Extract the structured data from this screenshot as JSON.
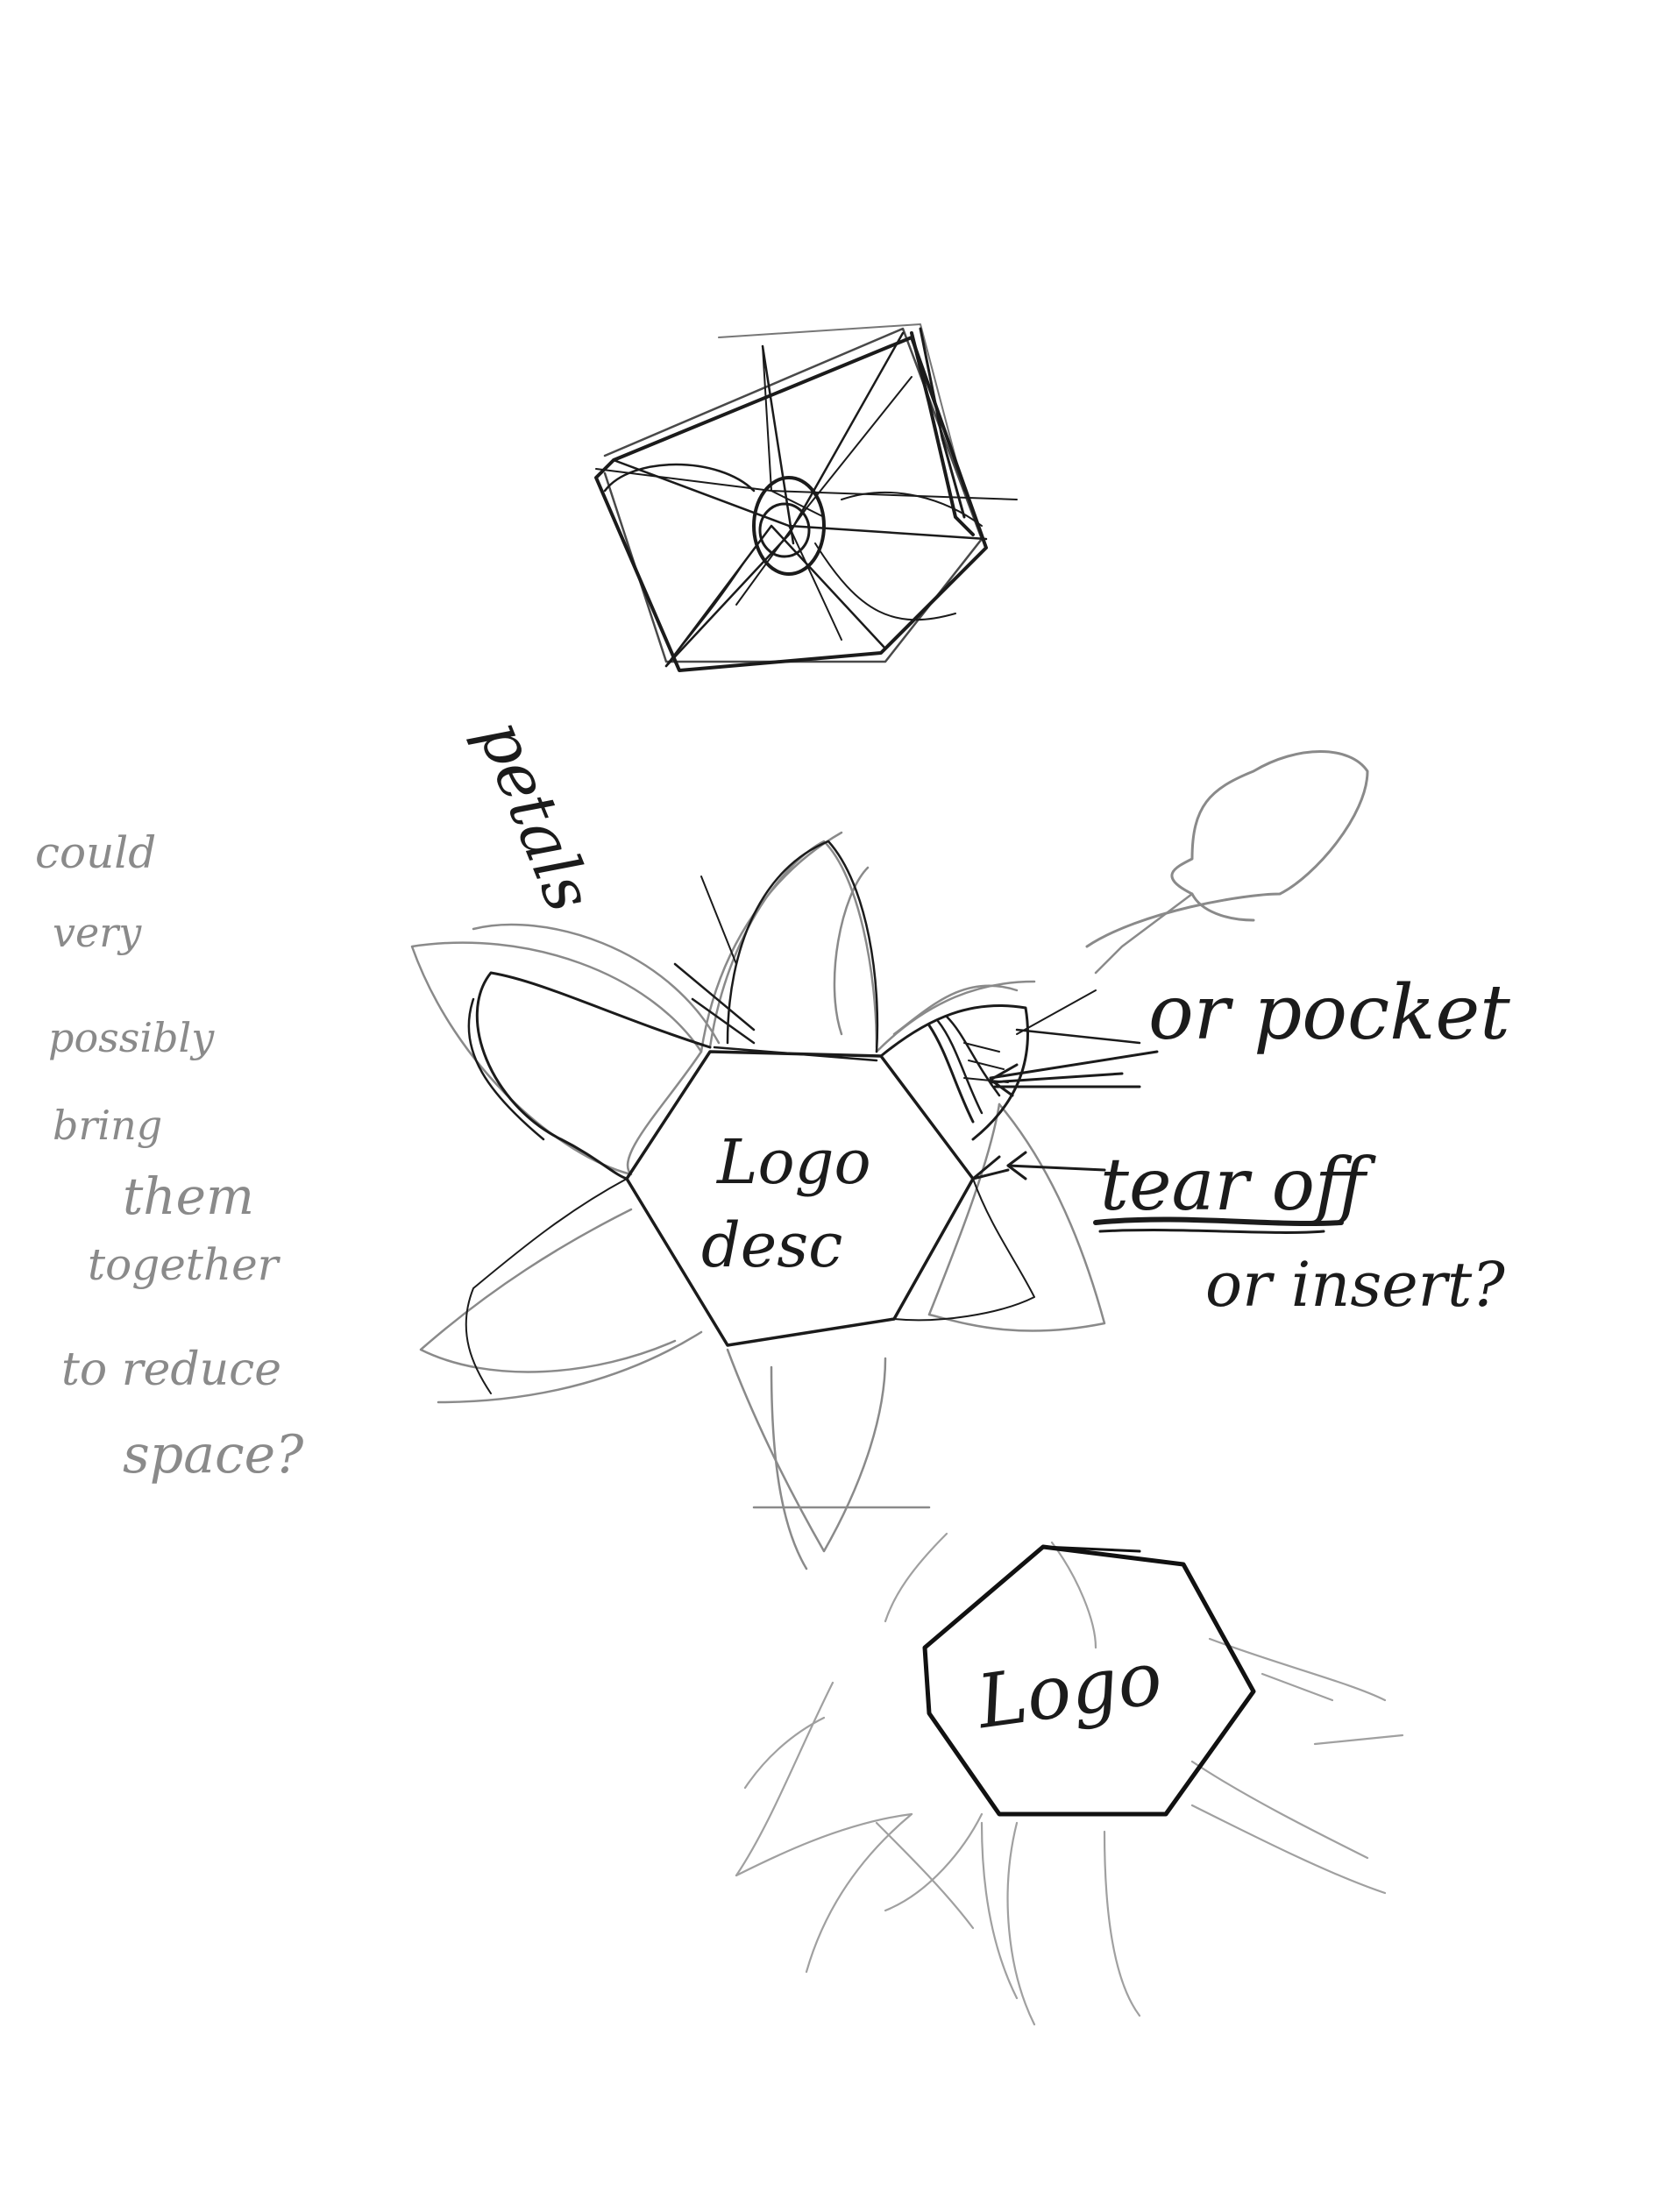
{
  "annotations": {
    "petals": "petals",
    "or_pocket": "or pocket",
    "tear_off": "tear off",
    "or_insert": "or insert?",
    "side_note": [
      "could",
      "very",
      "possibly",
      "bring",
      "them",
      "together",
      "to reduce",
      "space?"
    ]
  },
  "shapes": {
    "logo_desc": [
      "Logo",
      "desc"
    ],
    "logo": "Logo"
  },
  "colors": {
    "ink": "#1b1b1b",
    "pencil": "#8a8a8a",
    "paper": "#ffffff"
  }
}
